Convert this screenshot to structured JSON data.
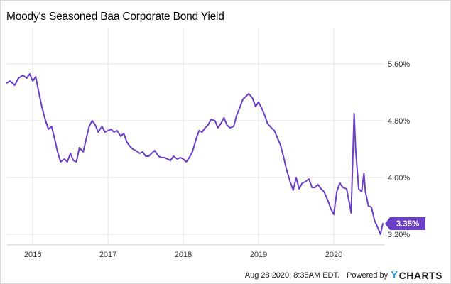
{
  "title": "Moody's Seasoned Baa Corporate Bond Yield",
  "footer": {
    "date": "Aug 28 2020, 8:35AM EDT.",
    "powered_by": "Powered by",
    "brand_y": "Y",
    "brand_rest": "CHARTS"
  },
  "colors": {
    "line": "#6a3ec7",
    "grid": "#e3e3e3",
    "badge": "#6a3ec7"
  },
  "chart_data": {
    "type": "line",
    "title": "Moody's Seasoned Baa Corporate Bond Yield",
    "xlabel": "",
    "ylabel": "",
    "x_ticks": [
      "2016",
      "2017",
      "2018",
      "2019",
      "2020"
    ],
    "y_ticks": [
      "3.20%",
      "4.00%",
      "4.80%",
      "5.60%"
    ],
    "y_tick_values": [
      3.2,
      4.0,
      4.8,
      5.6
    ],
    "xlim": [
      2015.65,
      2020.67
    ],
    "ylim": [
      3.05,
      6.1
    ],
    "grid": true,
    "last_value_label": "3.35%",
    "series": [
      {
        "x": [
          2015.65,
          2015.7,
          2015.76,
          2015.81,
          2015.87,
          2015.92,
          2015.96,
          2016.0,
          2016.04,
          2016.08,
          2016.12,
          2016.17,
          2016.21,
          2016.25,
          2016.29,
          2016.33,
          2016.37,
          2016.42,
          2016.46,
          2016.5,
          2016.54,
          2016.58,
          2016.62,
          2016.67,
          2016.71,
          2016.75,
          2016.79,
          2016.83,
          2016.87,
          2016.92,
          2016.96,
          2017.0,
          2017.04,
          2017.08,
          2017.12,
          2017.17,
          2017.21,
          2017.25,
          2017.29,
          2017.33,
          2017.37,
          2017.42,
          2017.46,
          2017.5,
          2017.54,
          2017.58,
          2017.62,
          2017.67,
          2017.71,
          2017.75,
          2017.79,
          2017.83,
          2017.87,
          2017.92,
          2017.96,
          2018.0,
          2018.04,
          2018.08,
          2018.12,
          2018.17,
          2018.21,
          2018.25,
          2018.29,
          2018.33,
          2018.37,
          2018.42,
          2018.46,
          2018.5,
          2018.54,
          2018.58,
          2018.62,
          2018.67,
          2018.71,
          2018.75,
          2018.79,
          2018.83,
          2018.87,
          2018.92,
          2018.96,
          2019.0,
          2019.04,
          2019.08,
          2019.12,
          2019.17,
          2019.21,
          2019.25,
          2019.29,
          2019.33,
          2019.37,
          2019.42,
          2019.46,
          2019.5,
          2019.54,
          2019.58,
          2019.62,
          2019.67,
          2019.71,
          2019.75,
          2019.79,
          2019.83,
          2019.87,
          2019.92,
          2019.96,
          2020.0,
          2020.04,
          2020.08,
          2020.12,
          2020.17,
          2020.21,
          2020.23,
          2020.25,
          2020.27,
          2020.29,
          2020.33,
          2020.37,
          2020.4,
          2020.42,
          2020.46,
          2020.5,
          2020.54,
          2020.58,
          2020.62,
          2020.65
        ],
        "y": [
          5.33,
          5.36,
          5.3,
          5.4,
          5.44,
          5.4,
          5.46,
          5.36,
          5.42,
          5.2,
          5.0,
          4.8,
          4.68,
          4.72,
          4.55,
          4.36,
          4.22,
          4.26,
          4.22,
          4.34,
          4.24,
          4.22,
          4.42,
          4.36,
          4.54,
          4.72,
          4.8,
          4.74,
          4.64,
          4.72,
          4.64,
          4.66,
          4.68,
          4.64,
          4.66,
          4.58,
          4.62,
          4.5,
          4.44,
          4.4,
          4.38,
          4.34,
          4.36,
          4.3,
          4.3,
          4.34,
          4.38,
          4.3,
          4.28,
          4.28,
          4.26,
          4.24,
          4.3,
          4.26,
          4.28,
          4.26,
          4.22,
          4.28,
          4.36,
          4.54,
          4.66,
          4.64,
          4.7,
          4.74,
          4.82,
          4.8,
          4.7,
          4.76,
          4.84,
          4.74,
          4.7,
          4.72,
          4.88,
          4.98,
          5.1,
          5.14,
          5.18,
          5.12,
          5.0,
          5.06,
          4.98,
          4.88,
          4.76,
          4.7,
          4.66,
          4.56,
          4.46,
          4.3,
          4.12,
          3.94,
          3.82,
          4.0,
          3.84,
          3.92,
          3.94,
          3.98,
          3.86,
          3.86,
          3.9,
          3.84,
          3.8,
          3.68,
          3.56,
          3.48,
          3.8,
          3.92,
          3.86,
          3.84,
          3.62,
          3.5,
          4.2,
          4.9,
          4.4,
          3.84,
          3.8,
          4.06,
          3.8,
          3.6,
          3.58,
          3.4,
          3.3,
          3.2,
          3.35
        ]
      }
    ]
  }
}
